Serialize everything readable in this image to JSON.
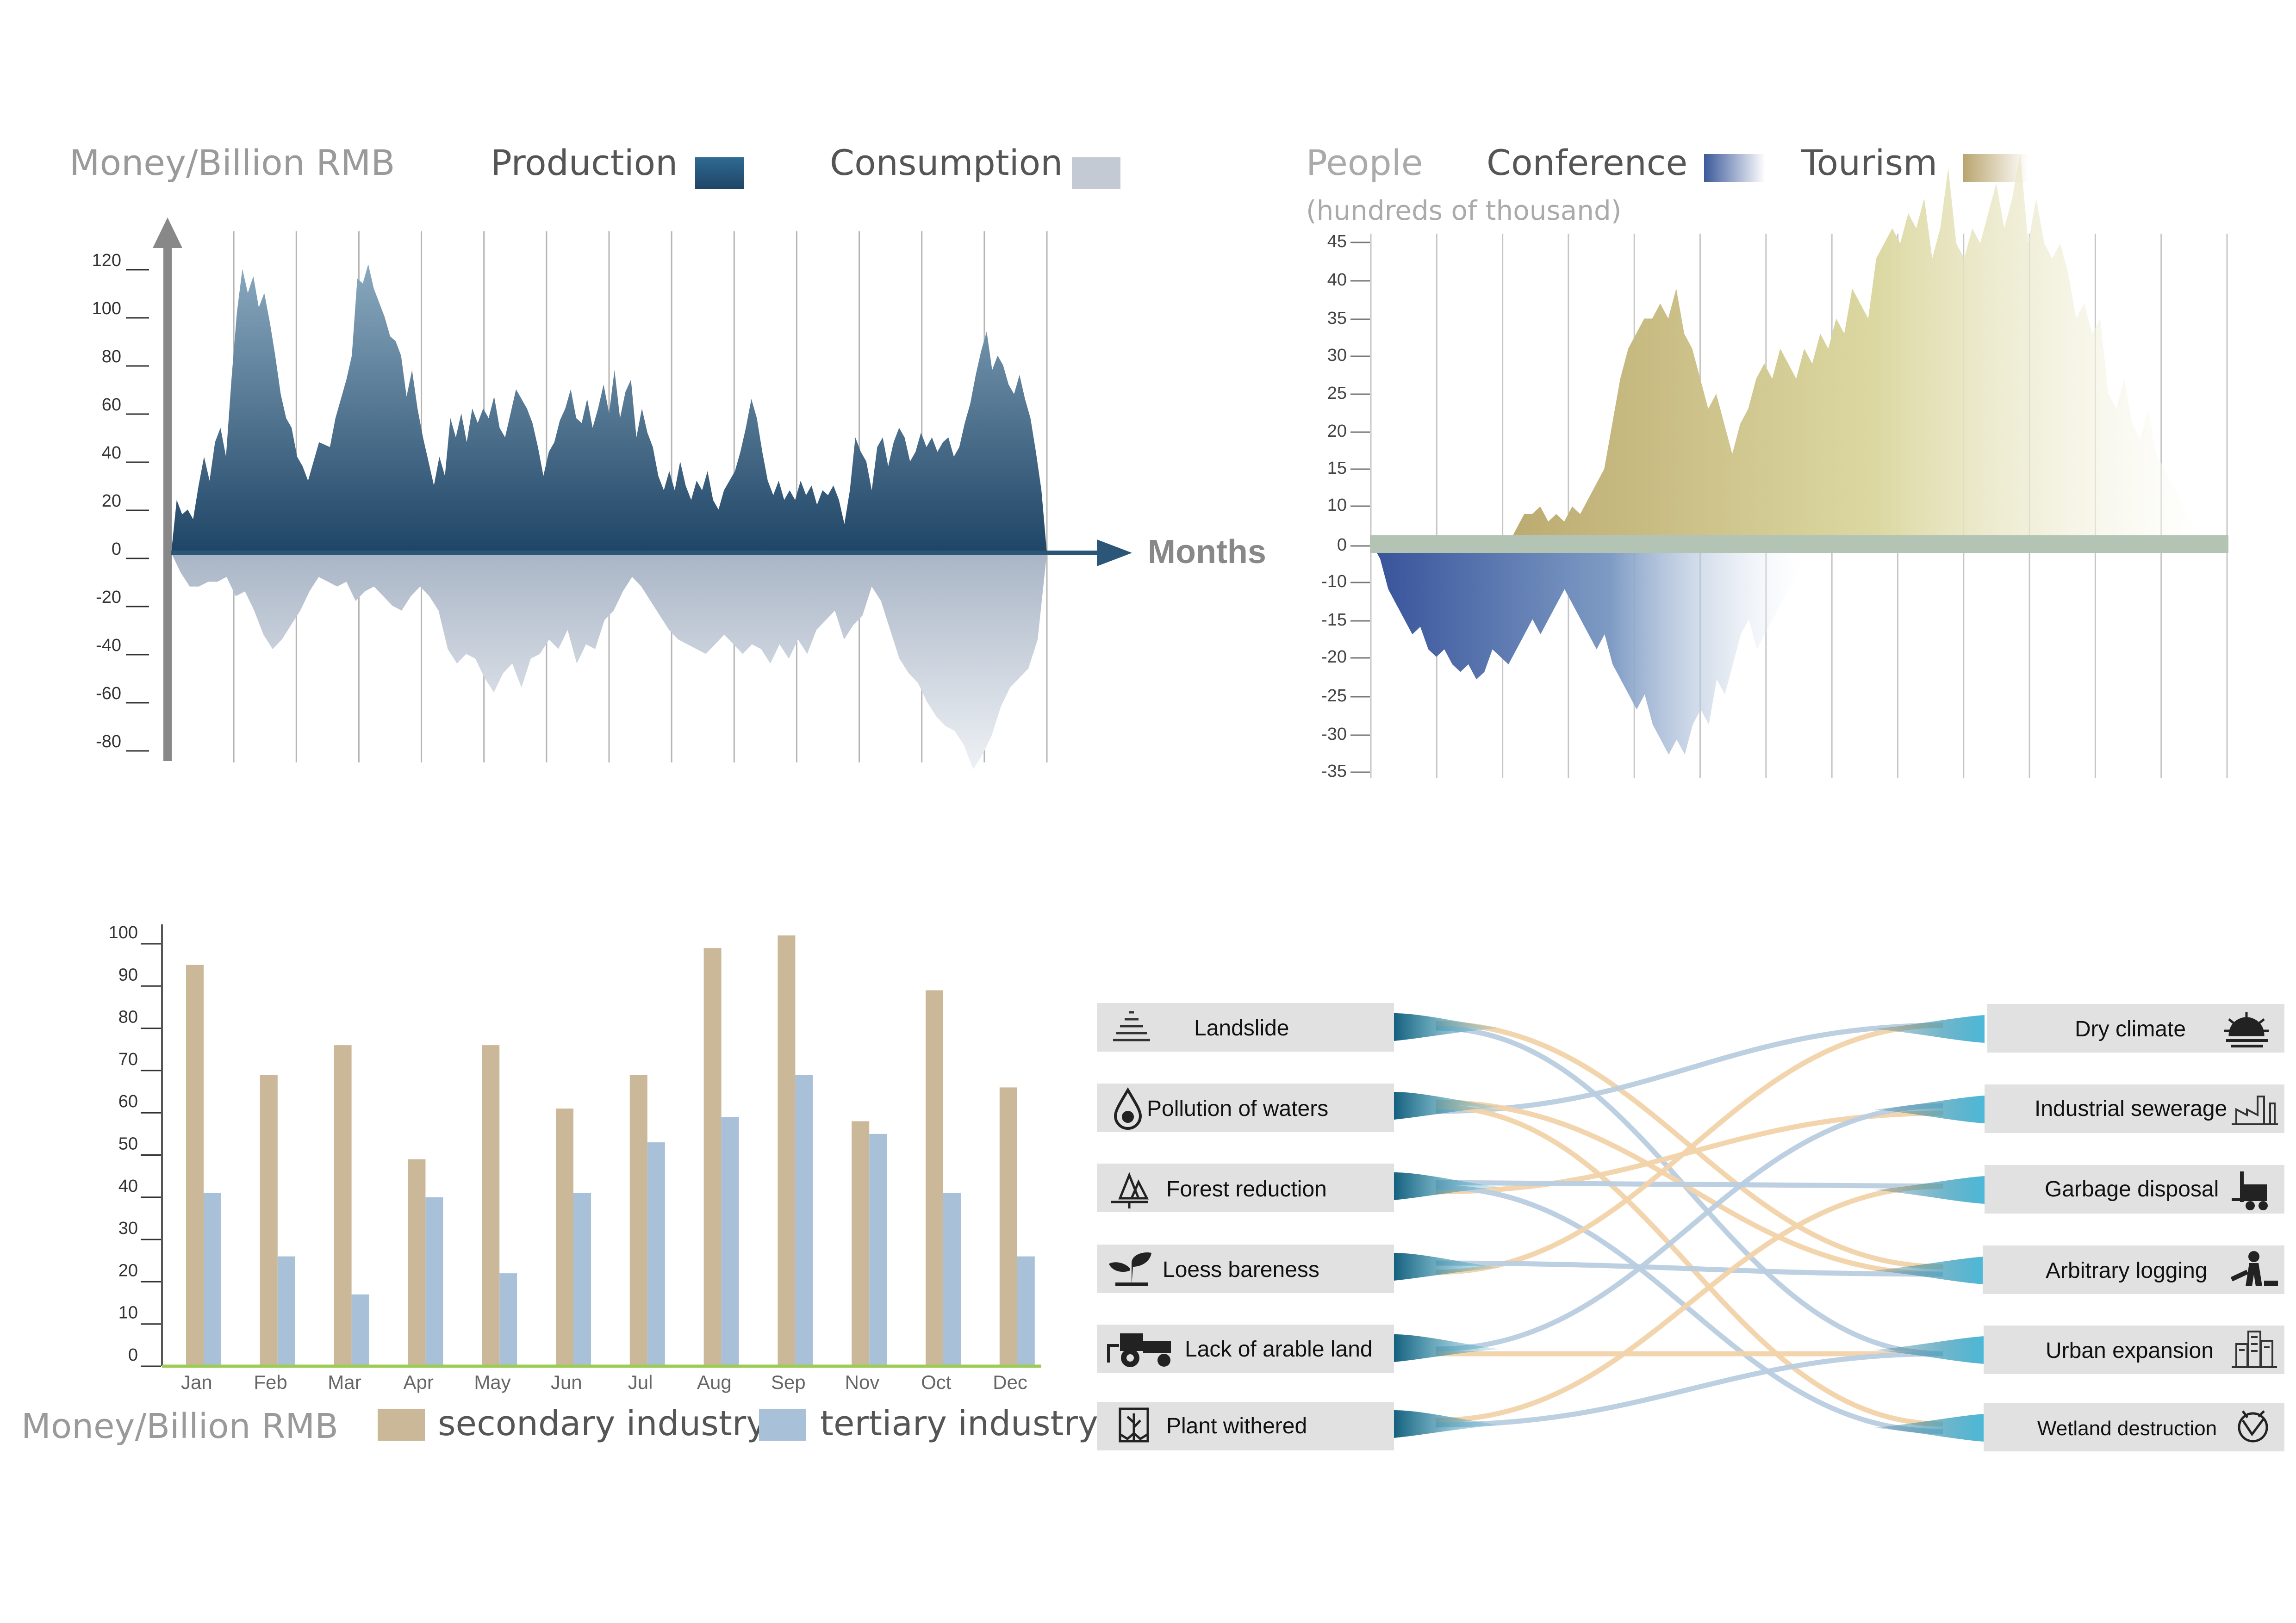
{
  "chart_data": [
    {
      "id": "money-area",
      "type": "area",
      "ylabel": "Money/Billion RMB",
      "xlabel": "Months",
      "yticks": [
        120,
        100,
        80,
        60,
        40,
        20,
        0,
        -20,
        -40,
        -60,
        -80
      ],
      "ylim": [
        -92,
        130
      ],
      "x_count": 14,
      "legend_position": "top",
      "grid": "vertical",
      "series": [
        {
          "name": "Production",
          "color": "#2f5b7d",
          "values": [
            0,
            22,
            16,
            18,
            14,
            28,
            40,
            30,
            46,
            52,
            40,
            72,
            100,
            118,
            108,
            115,
            102,
            108,
            96,
            82,
            66,
            56,
            52,
            40,
            36,
            30,
            38,
            46,
            45,
            44,
            56,
            64,
            72,
            82,
            114,
            112,
            120,
            110,
            104,
            98,
            90,
            88,
            82,
            65,
            76,
            60,
            48,
            38,
            28,
            40,
            32,
            56,
            48,
            58,
            46,
            60,
            54,
            60,
            56,
            65,
            52,
            48,
            58,
            68,
            64,
            60,
            54,
            44,
            32,
            42,
            46,
            55,
            60,
            68,
            56,
            54,
            64,
            52,
            60,
            70,
            58,
            76,
            56,
            67,
            72,
            48,
            60,
            50,
            44,
            32,
            26,
            34,
            26,
            38,
            28,
            22,
            30,
            26,
            34,
            22,
            18,
            26,
            30,
            34,
            42,
            52,
            64,
            56,
            42,
            30,
            24,
            30,
            22,
            26,
            22,
            30,
            24,
            28,
            20,
            26,
            24,
            28,
            22,
            12,
            26,
            48,
            42,
            38,
            26,
            44,
            48,
            36,
            46,
            52,
            48,
            38,
            42,
            50,
            44,
            48,
            42,
            46,
            48,
            40,
            44,
            54,
            62,
            74,
            84,
            92,
            76,
            82,
            78,
            70,
            66,
            74,
            64,
            56,
            42,
            26,
            0
          ]
        },
        {
          "name": "Consumption",
          "color": "#c4cad3",
          "values": [
            0,
            -8,
            -14,
            -14,
            -12,
            -12,
            -10,
            -18,
            -16,
            -24,
            -34,
            -40,
            -36,
            -30,
            -24,
            -16,
            -10,
            -12,
            -14,
            -12,
            -20,
            -16,
            -14,
            -18,
            -22,
            -24,
            -18,
            -14,
            -18,
            -24,
            -40,
            -46,
            -42,
            -44,
            -52,
            -58,
            -50,
            -46,
            -56,
            -44,
            -42,
            -36,
            -40,
            -32,
            -46,
            -38,
            -40,
            -28,
            -24,
            -16,
            -10,
            -14,
            -20,
            -26,
            -32,
            -36,
            -38,
            -40,
            -42,
            -38,
            -34,
            -38,
            -42,
            -38,
            -40,
            -46,
            -38,
            -44,
            -36,
            -42,
            -32,
            -28,
            -24,
            -36,
            -30,
            -26,
            -14,
            -20,
            -32,
            -44,
            -50,
            -54,
            -62,
            -68,
            -72,
            -74,
            -80,
            -90,
            -84,
            -76,
            -64,
            -56,
            -52,
            -48,
            -36,
            0
          ]
        }
      ]
    },
    {
      "id": "people-area",
      "type": "area",
      "ylabel": "People",
      "ylabel2": "(hundreds of thousand)",
      "yticks": [
        45,
        40,
        35,
        30,
        25,
        20,
        15,
        10,
        0,
        -10,
        -15,
        -20,
        -25,
        -30,
        -35
      ],
      "ylim": [
        -35,
        45
      ],
      "x_count": 14,
      "legend_position": "top",
      "grid": "vertical",
      "series": [
        {
          "name": "Conference",
          "color": "#3c5a9a",
          "values": [
            0,
            -2,
            -6,
            -8,
            -10,
            -12,
            -11,
            -14,
            -15,
            -14,
            -16,
            -17,
            -16,
            -18,
            -17,
            -14,
            -15,
            -16,
            -14,
            -12,
            -10,
            -12,
            -10,
            -8,
            -6,
            -8,
            -10,
            -12,
            -14,
            -12,
            -16,
            -18,
            -20,
            -22,
            -20,
            -24,
            -26,
            -28,
            -26,
            -28,
            -24,
            -22,
            -24,
            -18,
            -20,
            -16,
            -12,
            -10,
            -14,
            -12,
            -10,
            -8,
            -6,
            -4,
            0
          ]
        },
        {
          "name": "Tourism",
          "color": "#b9a56e",
          "values": [
            0,
            0,
            0,
            0,
            0,
            0,
            0,
            0,
            0,
            0,
            0,
            0,
            0,
            0,
            0,
            0,
            0,
            0,
            2,
            4,
            4,
            5,
            3,
            4,
            3,
            5,
            4,
            6,
            8,
            10,
            16,
            22,
            26,
            28,
            30,
            30,
            32,
            30,
            34,
            28,
            26,
            22,
            18,
            20,
            16,
            12,
            16,
            18,
            22,
            24,
            22,
            26,
            24,
            22,
            26,
            24,
            28,
            26,
            30,
            28,
            34,
            32,
            30,
            38,
            40,
            42,
            40,
            44,
            42,
            46,
            38,
            42,
            50,
            40,
            38,
            42,
            40,
            44,
            48,
            42,
            46,
            52,
            40,
            46,
            40,
            38,
            40,
            36,
            30,
            32,
            28,
            30,
            20,
            18,
            22,
            16,
            14,
            18,
            12,
            10,
            8,
            6,
            4,
            2,
            1,
            0
          ]
        }
      ]
    },
    {
      "id": "industry-bar",
      "type": "bar",
      "ylabel": "Money/Billion RMB",
      "categories": [
        "Jan",
        "Feb",
        "Mar",
        "Apr",
        "May",
        "Jun",
        "Jul",
        "Aug",
        "Sep",
        "Nov",
        "Oct",
        "Dec"
      ],
      "yticks": [
        100,
        90,
        80,
        70,
        60,
        50,
        40,
        30,
        20,
        10,
        0
      ],
      "ylim": [
        0,
        105
      ],
      "legend_position": "bottom",
      "series": [
        {
          "name": "secondary industry",
          "color": "#cbb898",
          "values": [
            95,
            69,
            76,
            49,
            76,
            61,
            69,
            99,
            102,
            58,
            89,
            66
          ]
        },
        {
          "name": "tertiary industry",
          "color": "#a9c0d9",
          "values": [
            41,
            26,
            17,
            40,
            22,
            41,
            53,
            59,
            69,
            55,
            41,
            26
          ]
        }
      ]
    },
    {
      "id": "cause-effect",
      "type": "sankey",
      "sources": [
        {
          "label": "Landslide",
          "icon": "landslide-icon"
        },
        {
          "label": "Pollution of waters",
          "icon": "water-pollution-icon"
        },
        {
          "label": "Forest reduction",
          "icon": "forest-icon"
        },
        {
          "label": "Loess bareness",
          "icon": "sprout-icon"
        },
        {
          "label": "Lack of arable land",
          "icon": "tractor-icon"
        },
        {
          "label": "Plant withered",
          "icon": "withered-plant-icon"
        }
      ],
      "targets": [
        {
          "label": "Dry climate",
          "icon": "sun-icon"
        },
        {
          "label": "Industrial sewerage",
          "icon": "factory-icon"
        },
        {
          "label": "Garbage disposal",
          "icon": "forklift-icon"
        },
        {
          "label": "Arbitrary logging",
          "icon": "logging-icon"
        },
        {
          "label": "Urban expansion",
          "icon": "city-icon"
        },
        {
          "label": "Wetland destruction",
          "icon": "wetland-icon"
        }
      ],
      "links": [
        {
          "from": 0,
          "to": 3,
          "color": "#f2d3a9"
        },
        {
          "from": 0,
          "to": 4,
          "color": "#b9cde0"
        },
        {
          "from": 1,
          "to": 0,
          "color": "#b9cde0"
        },
        {
          "from": 1,
          "to": 3,
          "color": "#f2d3a9"
        },
        {
          "from": 1,
          "to": 5,
          "color": "#f2d3a9"
        },
        {
          "from": 2,
          "to": 1,
          "color": "#f2d3a9"
        },
        {
          "from": 2,
          "to": 2,
          "color": "#b9cde0"
        },
        {
          "from": 2,
          "to": 5,
          "color": "#b9cde0"
        },
        {
          "from": 3,
          "to": 0,
          "color": "#f2d3a9"
        },
        {
          "from": 3,
          "to": 3,
          "color": "#b9cde0"
        },
        {
          "from": 4,
          "to": 1,
          "color": "#b9cde0"
        },
        {
          "from": 4,
          "to": 4,
          "color": "#f2d3a9"
        },
        {
          "from": 5,
          "to": 2,
          "color": "#f2d3a9"
        },
        {
          "from": 5,
          "to": 4,
          "color": "#b9cde0"
        }
      ]
    }
  ]
}
